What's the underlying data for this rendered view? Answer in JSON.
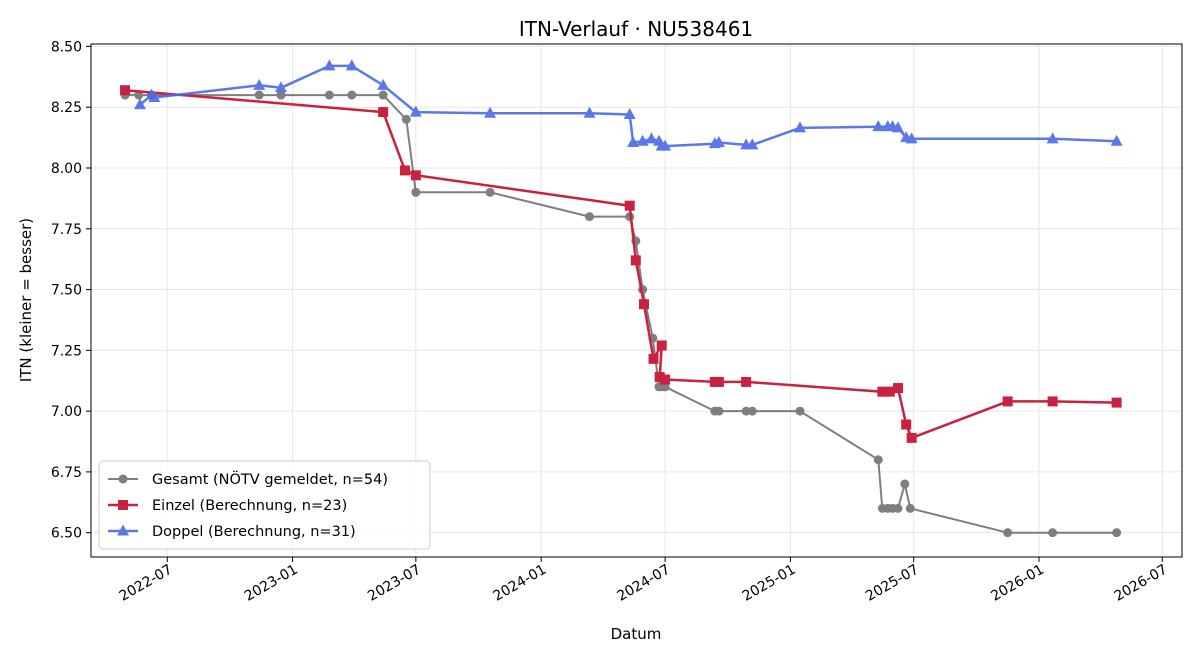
{
  "chart_data": {
    "type": "line",
    "title": "ITN-Verlauf · NU538461",
    "xlabel": "Datum",
    "ylabel": "ITN  (kleiner = besser)",
    "x_type": "date",
    "xlim": [
      "2022-03-11",
      "2026-07-30"
    ],
    "ylim": [
      6.4,
      8.51
    ],
    "x_ticks": [
      "2022-07-01",
      "2023-01-01",
      "2023-07-01",
      "2024-01-01",
      "2024-07-01",
      "2025-01-01",
      "2025-07-01",
      "2026-01-01",
      "2026-07-01"
    ],
    "x_tick_labels": [
      "2022-07",
      "2023-01",
      "2023-07",
      "2024-01",
      "2024-07",
      "2025-01",
      "2025-07",
      "2026-01",
      "2026-07"
    ],
    "y_ticks": [
      6.5,
      6.75,
      7.0,
      7.25,
      7.5,
      7.75,
      8.0,
      8.25,
      8.5
    ],
    "y_tick_labels": [
      "6.50",
      "6.75",
      "7.00",
      "7.25",
      "7.50",
      "7.75",
      "8.00",
      "8.25",
      "8.50"
    ],
    "grid": true,
    "legend_position": "bottom-left",
    "series": [
      {
        "name": "Gesamt (NÖTV gemeldet, n=54)",
        "color": "#555555",
        "marker": "circle",
        "points": [
          [
            "2022-04-30",
            8.3
          ],
          [
            "2022-05-20",
            8.3
          ],
          [
            "2022-06-08",
            8.3
          ],
          [
            "2022-11-13",
            8.3
          ],
          [
            "2022-12-15",
            8.3
          ],
          [
            "2023-02-24",
            8.3
          ],
          [
            "2023-03-29",
            8.3
          ],
          [
            "2023-05-14",
            8.3
          ],
          [
            "2023-06-17",
            8.2
          ],
          [
            "2023-07-01",
            7.9
          ],
          [
            "2023-10-18",
            7.9
          ],
          [
            "2024-03-12",
            7.8
          ],
          [
            "2024-05-10",
            7.8
          ],
          [
            "2024-05-19",
            7.7
          ],
          [
            "2024-05-29",
            7.5
          ],
          [
            "2024-06-13",
            7.3
          ],
          [
            "2024-06-22",
            7.1
          ],
          [
            "2024-06-26",
            7.1
          ],
          [
            "2024-07-01",
            7.1
          ],
          [
            "2024-09-12",
            7.0
          ],
          [
            "2024-09-18",
            7.0
          ],
          [
            "2024-10-28",
            7.0
          ],
          [
            "2024-11-06",
            7.0
          ],
          [
            "2025-01-15",
            7.0
          ],
          [
            "2025-05-10",
            6.8
          ],
          [
            "2025-05-16",
            6.6
          ],
          [
            "2025-05-24",
            6.6
          ],
          [
            "2025-05-31",
            6.6
          ],
          [
            "2025-06-08",
            6.6
          ],
          [
            "2025-06-18",
            6.7
          ],
          [
            "2025-06-26",
            6.6
          ],
          [
            "2025-11-16",
            6.5
          ],
          [
            "2026-01-21",
            6.5
          ],
          [
            "2026-04-25",
            6.5
          ]
        ]
      },
      {
        "name": "Einzel (Berechnung, n=23)",
        "color": "#c8223e",
        "marker": "square",
        "points": [
          [
            "2022-04-30",
            8.32
          ],
          [
            "2023-05-14",
            8.23
          ],
          [
            "2023-06-15",
            7.99
          ],
          [
            "2023-07-01",
            7.97
          ],
          [
            "2024-05-10",
            7.845
          ],
          [
            "2024-05-19",
            7.62
          ],
          [
            "2024-05-31",
            7.44
          ],
          [
            "2024-06-14",
            7.215
          ],
          [
            "2024-06-26",
            7.27
          ],
          [
            "2024-06-23",
            7.14
          ],
          [
            "2024-07-01",
            7.13
          ],
          [
            "2024-09-12",
            7.12
          ],
          [
            "2024-09-18",
            7.12
          ],
          [
            "2024-10-28",
            7.12
          ],
          [
            "2025-05-16",
            7.08
          ],
          [
            "2025-05-27",
            7.08
          ],
          [
            "2025-06-08",
            7.095
          ],
          [
            "2025-06-20",
            6.945
          ],
          [
            "2025-06-28",
            6.89
          ],
          [
            "2025-11-16",
            7.04
          ],
          [
            "2026-01-21",
            7.04
          ],
          [
            "2026-04-25",
            7.035
          ]
        ]
      },
      {
        "name": "Doppel (Berechnung, n=31)",
        "color": "#4a6ae8",
        "marker": "triangle",
        "points": [
          [
            "2022-05-22",
            8.26
          ],
          [
            "2022-06-08",
            8.3
          ],
          [
            "2022-06-12",
            8.29
          ],
          [
            "2022-11-13",
            8.34
          ],
          [
            "2022-12-15",
            8.33
          ],
          [
            "2023-02-24",
            8.42
          ],
          [
            "2023-03-29",
            8.42
          ],
          [
            "2023-05-14",
            8.34
          ],
          [
            "2023-07-01",
            8.23
          ],
          [
            "2023-10-18",
            8.225
          ],
          [
            "2024-03-12",
            8.225
          ],
          [
            "2024-05-10",
            8.22
          ],
          [
            "2024-05-15",
            8.105
          ],
          [
            "2024-05-29",
            8.11
          ],
          [
            "2024-06-11",
            8.12
          ],
          [
            "2024-06-22",
            8.11
          ],
          [
            "2024-06-26",
            8.09
          ],
          [
            "2024-07-01",
            8.09
          ],
          [
            "2024-09-12",
            8.1
          ],
          [
            "2024-09-18",
            8.105
          ],
          [
            "2024-10-28",
            8.095
          ],
          [
            "2024-11-06",
            8.095
          ],
          [
            "2025-01-15",
            8.165
          ],
          [
            "2025-05-10",
            8.17
          ],
          [
            "2025-05-24",
            8.17
          ],
          [
            "2025-05-31",
            8.17
          ],
          [
            "2025-06-08",
            8.165
          ],
          [
            "2025-06-20",
            8.125
          ],
          [
            "2025-06-28",
            8.12
          ],
          [
            "2026-01-21",
            8.12
          ],
          [
            "2026-04-25",
            8.11
          ]
        ]
      }
    ]
  }
}
